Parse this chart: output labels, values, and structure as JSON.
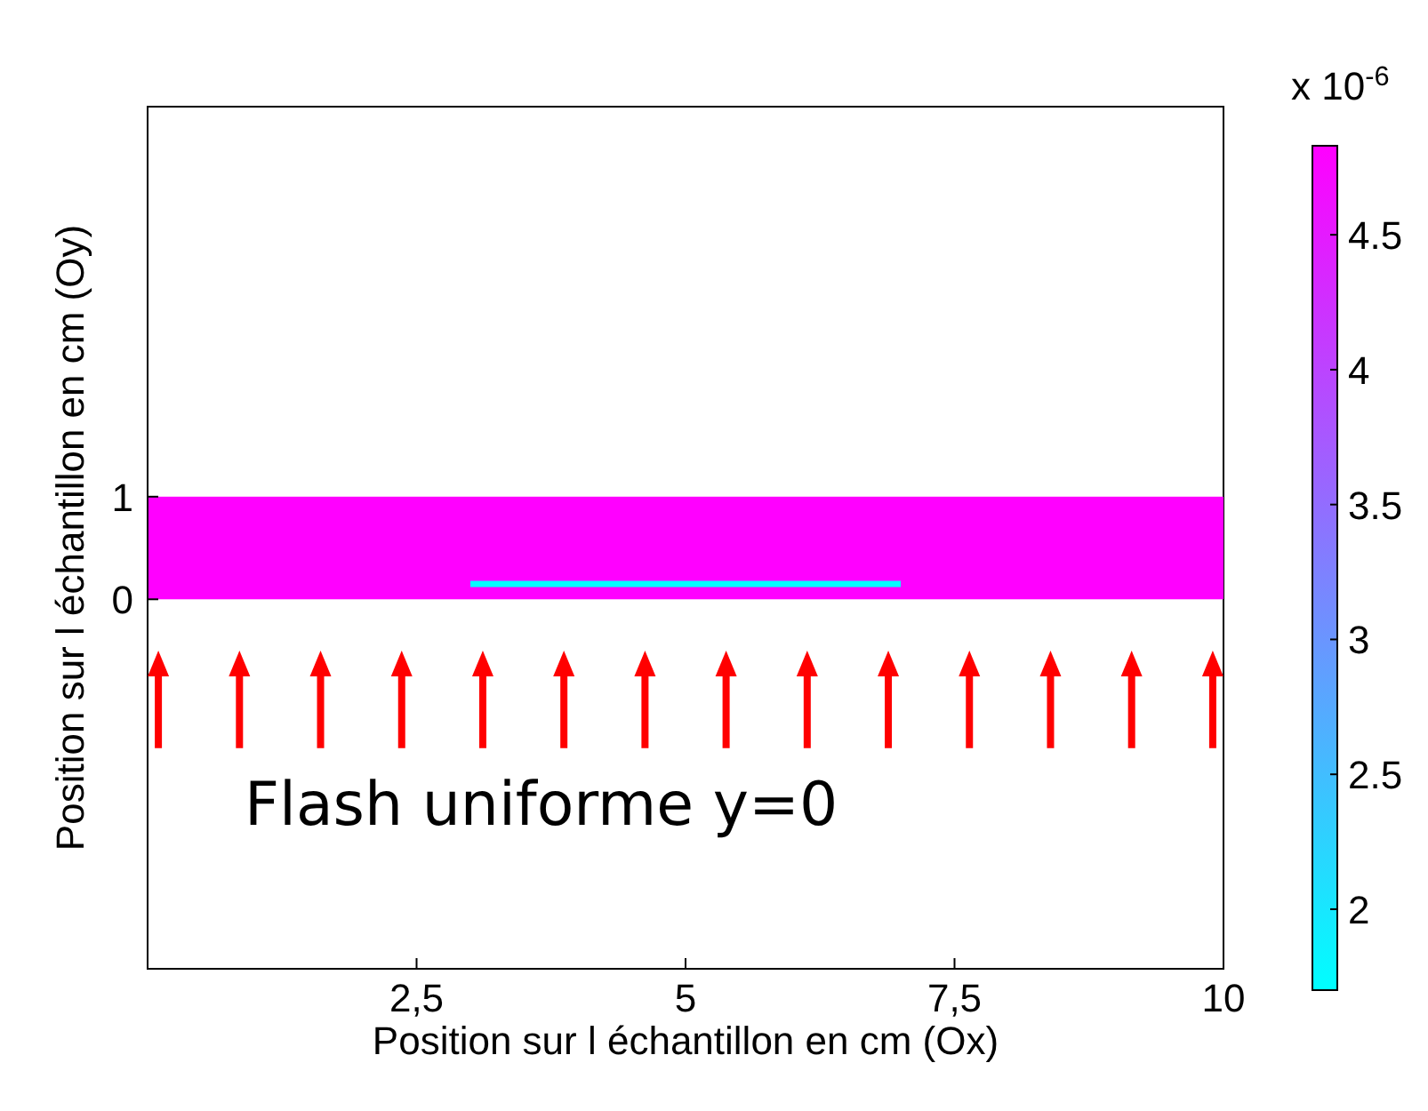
{
  "chart_data": {
    "type": "line",
    "xlabel": "Position sur l échantillon en cm (Ox)",
    "ylabel": "Position sur l échantillon en cm (Oy)",
    "clabel": "x 10$^{-6}$",
    "series": [
      {
        "color": "#00ffff",
        "x": [
          3,
          7
        ],
        "values": [
          0.15,
          0.15
        ]
      }
    ],
    "bands": [
      {
        "axis": "y",
        "from": 0,
        "to": 1,
        "color": "#ff00ff"
      }
    ],
    "xlim": [
      0,
      10
    ],
    "xticks": [
      {
        "value": 2.5,
        "label": "2,5"
      },
      5,
      {
        "value": 7.5,
        "label": "7,5"
      },
      10
    ],
    "ylim": [
      -3.6,
      4.8
    ],
    "yticks": [
      0,
      1
    ],
    "clim": [
      1.7,
      4.83
    ],
    "cticks": [
      2,
      2.5,
      3,
      3.5,
      4,
      4.5
    ],
    "annotations": [
      "Flash uniforme y=0"
    ]
  }
}
